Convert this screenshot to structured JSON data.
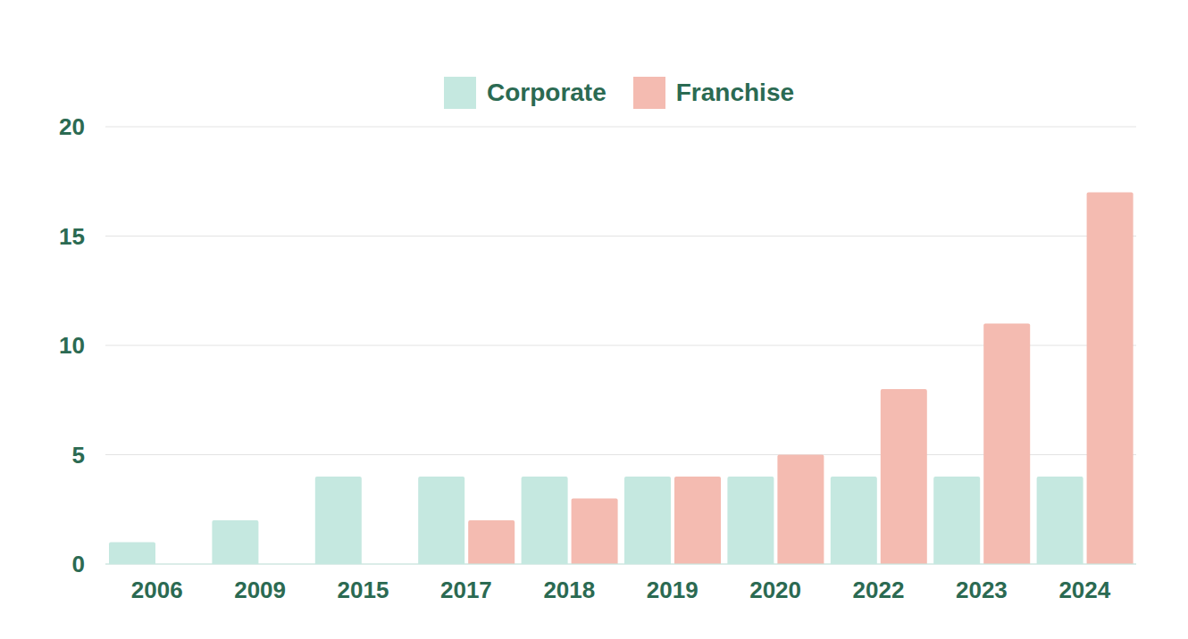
{
  "chart_data": {
    "type": "bar",
    "categories": [
      "2006",
      "2009",
      "2015",
      "2017",
      "2018",
      "2019",
      "2020",
      "2022",
      "2023",
      "2024"
    ],
    "series": [
      {
        "name": "Corporate",
        "color": "#c5e8e0",
        "values": [
          1,
          2,
          4,
          4,
          4,
          4,
          4,
          4,
          4,
          4
        ]
      },
      {
        "name": "Franchise",
        "color": "#f4bbb1",
        "values": [
          0,
          0,
          0,
          2,
          3,
          4,
          5,
          8,
          11,
          17
        ]
      }
    ],
    "ylim": [
      0,
      20
    ],
    "yticks": [
      0,
      5,
      10,
      15,
      20
    ],
    "grid": true,
    "legend": "top"
  }
}
